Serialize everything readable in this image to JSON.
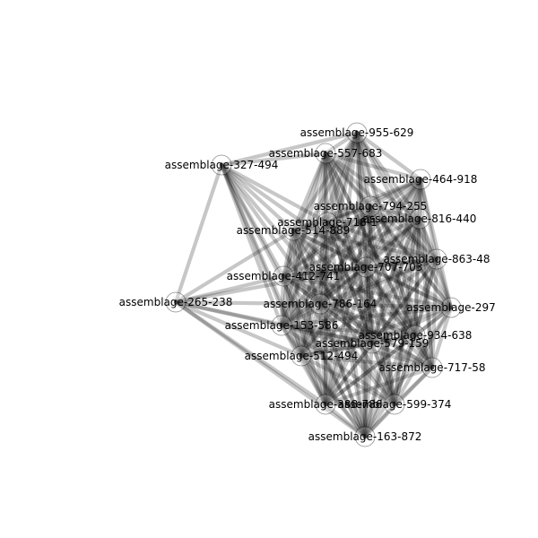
{
  "graph": {
    "type": "network",
    "nodes": [
      {
        "id": "n_955_629",
        "label": "assemblage-955-629"
      },
      {
        "id": "n_557_683",
        "label": "assemblage-557-683"
      },
      {
        "id": "n_327_494",
        "label": "assemblage-327-494"
      },
      {
        "id": "n_464_918",
        "label": "assemblage-464-918"
      },
      {
        "id": "n_794_255",
        "label": "assemblage-794-255"
      },
      {
        "id": "n_816_440",
        "label": "assemblage-816-440"
      },
      {
        "id": "n_718",
        "label": "assemblage-718-1"
      },
      {
        "id": "n_514_889",
        "label": "assemblage-514-889"
      },
      {
        "id": "n_863_48",
        "label": "assemblage-863-48"
      },
      {
        "id": "n_707",
        "label": "assemblage-707-703"
      },
      {
        "id": "n_412",
        "label": "assemblage-412-741"
      },
      {
        "id": "n_265_238",
        "label": "assemblage-265-238"
      },
      {
        "id": "n_786",
        "label": "assemblage-786-164"
      },
      {
        "id": "n_297",
        "label": "assemblage-297"
      },
      {
        "id": "n_153",
        "label": "assemblage-153-586"
      },
      {
        "id": "n_934_638",
        "label": "assemblage-934-638"
      },
      {
        "id": "n_579",
        "label": "assemblage-579-159"
      },
      {
        "id": "n_512_494",
        "label": "assemblage-512-494"
      },
      {
        "id": "n_717_58",
        "label": "assemblage-717-58"
      },
      {
        "id": "n_388",
        "label": "assemblage-388-786"
      },
      {
        "id": "n_599_374",
        "label": "assemblage-599-374"
      },
      {
        "id": "n_163_872",
        "label": "assemblage-163-872"
      }
    ],
    "edge_mode": "complete",
    "sparse_node_links": {
      "n_327_494": [
        "n_955_629",
        "n_557_683",
        "n_265_238",
        "n_718",
        "n_514_889",
        "n_412",
        "n_786",
        "n_153",
        "n_512_494",
        "n_388",
        "n_163_872",
        "n_707",
        "n_579"
      ],
      "n_265_238": [
        "n_327_494",
        "n_514_889",
        "n_412",
        "n_786",
        "n_153",
        "n_512_494",
        "n_388",
        "n_707",
        "n_579",
        "n_163_872"
      ]
    }
  }
}
